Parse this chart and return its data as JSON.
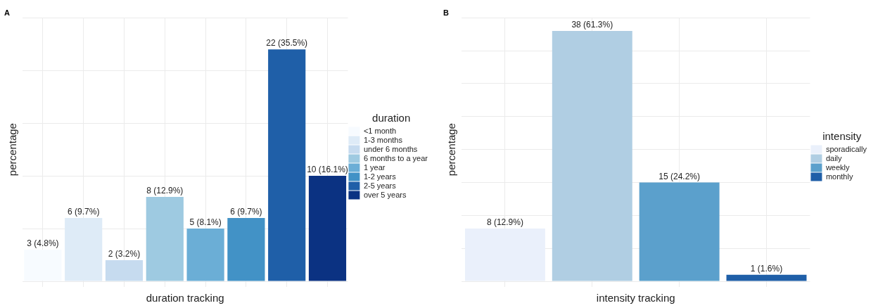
{
  "chart_data": [
    {
      "type": "bar",
      "title": "A",
      "xlabel": "duration tracking",
      "ylabel": "percentage",
      "legend_title": "duration",
      "stacked": true,
      "categories": [
        null,
        null,
        null,
        null,
        null,
        null,
        null,
        null
      ],
      "series": [
        {
          "name": "<1 month",
          "color": "#f7fbff",
          "values": [
            3,
            null,
            null,
            null,
            null,
            null,
            null,
            null
          ],
          "value_labels": [
            "3 (4.8%)",
            null,
            null,
            null,
            null,
            null,
            null,
            null
          ]
        },
        {
          "name": "1-3 months",
          "color": "#deebf7",
          "values": [
            null,
            6,
            null,
            null,
            null,
            null,
            null,
            null
          ],
          "value_labels": [
            null,
            "6 (9.7%)",
            null,
            null,
            null,
            null,
            null,
            null
          ]
        },
        {
          "name": "under 6 months",
          "color": "#c6dbef",
          "values": [
            null,
            null,
            2,
            null,
            null,
            null,
            null,
            null
          ],
          "value_labels": [
            null,
            null,
            "2 (3.2%)",
            null,
            null,
            null,
            null,
            null
          ]
        },
        {
          "name": "6 months to a year",
          "color": "#9ecae1",
          "values": [
            null,
            null,
            null,
            8,
            null,
            null,
            null,
            null
          ],
          "value_labels": [
            null,
            null,
            null,
            "8 (12.9%)",
            null,
            null,
            null,
            null
          ]
        },
        {
          "name": "1 year",
          "color": "#6baed6",
          "values": [
            null,
            null,
            null,
            null,
            5,
            null,
            null,
            null
          ],
          "value_labels": [
            null,
            null,
            null,
            null,
            "5 (8.1%)",
            null,
            null,
            null
          ]
        },
        {
          "name": "1-2 years",
          "color": "#4292c6",
          "values": [
            null,
            null,
            null,
            null,
            null,
            6,
            null,
            null
          ],
          "value_labels": [
            null,
            null,
            null,
            null,
            null,
            "6 (9.7%)",
            null,
            null
          ]
        },
        {
          "name": "2-5 years",
          "color": "#1f5fa8",
          "values": [
            null,
            null,
            null,
            null,
            null,
            null,
            22,
            null
          ],
          "value_labels": [
            null,
            null,
            null,
            null,
            null,
            null,
            "22 (35.5%)",
            null
          ]
        },
        {
          "name": "over 5 years",
          "color": "#0b3282",
          "values": [
            null,
            null,
            null,
            null,
            null,
            null,
            null,
            10
          ],
          "value_labels": [
            null,
            null,
            null,
            null,
            null,
            null,
            null,
            "10 (16.1%)"
          ]
        }
      ],
      "grid": true,
      "legend": "right",
      "tick_labels": false
    },
    {
      "type": "bar",
      "title": "B",
      "xlabel": "intensity tracking",
      "ylabel": "percentage",
      "legend_title": "intensity",
      "stacked": true,
      "categories": [
        null,
        null,
        null,
        null
      ],
      "series": [
        {
          "name": "sporadically",
          "color": "#eaf0fb",
          "values": [
            8,
            null,
            null,
            null
          ],
          "value_labels": [
            "8 (12.9%)",
            null,
            null,
            null
          ]
        },
        {
          "name": "daily",
          "color": "#b0cee3",
          "values": [
            null,
            38,
            null,
            null
          ],
          "value_labels": [
            null,
            "38 (61.3%)",
            null,
            null
          ]
        },
        {
          "name": "weekly",
          "color": "#5ba0cc",
          "values": [
            null,
            null,
            15,
            null
          ],
          "value_labels": [
            null,
            null,
            "15 (24.2%)",
            null
          ]
        },
        {
          "name": "monthly",
          "color": "#1f5fa8",
          "values": [
            null,
            null,
            null,
            1
          ],
          "value_labels": [
            null,
            null,
            null,
            "1 (1.6%)"
          ]
        }
      ],
      "grid": true,
      "legend": "right",
      "tick_labels": false
    }
  ]
}
